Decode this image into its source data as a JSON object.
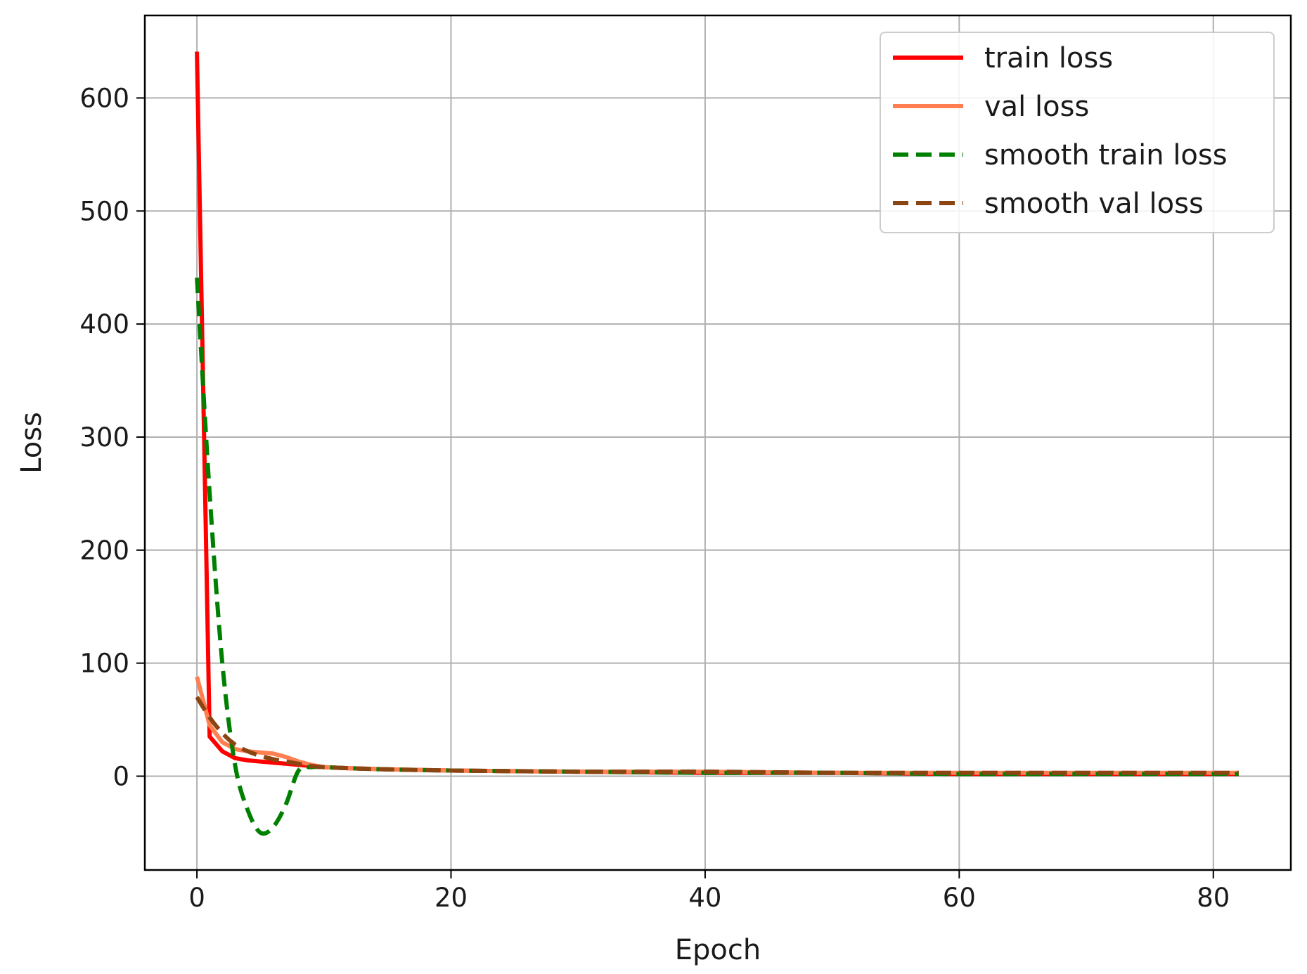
{
  "chart_data": {
    "type": "line",
    "title": "",
    "xlabel": "Epoch",
    "ylabel": "Loss",
    "xlim": [
      -4.1,
      86.1
    ],
    "ylim": [
      -83,
      673
    ],
    "xticks": [
      0,
      20,
      40,
      60,
      80
    ],
    "yticks": [
      0,
      100,
      200,
      300,
      400,
      500,
      600
    ],
    "grid": true,
    "legend_position": "top-right",
    "series": [
      {
        "name": "train loss",
        "color": "#ff0000",
        "style": "solid",
        "x": [
          0,
          1,
          2,
          3,
          4,
          5,
          6,
          7,
          8,
          9,
          10,
          12,
          15,
          20,
          30,
          40,
          50,
          60,
          70,
          82
        ],
        "y": [
          641,
          35,
          22,
          16,
          14,
          13,
          12,
          11,
          10,
          9,
          8,
          7,
          6,
          5,
          4,
          3,
          3,
          2,
          2,
          2
        ]
      },
      {
        "name": "val loss",
        "color": "#ff7f50",
        "style": "solid",
        "x": [
          0,
          1,
          2,
          3,
          4,
          5,
          6,
          7,
          8,
          9,
          10,
          12,
          15,
          20,
          30,
          40,
          50,
          60,
          70,
          82
        ],
        "y": [
          88,
          45,
          30,
          24,
          22,
          21,
          20,
          17,
          13,
          10,
          8,
          7,
          6,
          5,
          4,
          4,
          3,
          3,
          3,
          3
        ]
      },
      {
        "name": "smooth train loss",
        "color": "#008000",
        "style": "dashed",
        "x": [
          0,
          1,
          2,
          3,
          4,
          5,
          6,
          7,
          8,
          9,
          10,
          12,
          15,
          20,
          30,
          40,
          50,
          60,
          70,
          82
        ],
        "y": [
          441,
          250,
          100,
          10,
          -30,
          -50,
          -45,
          -25,
          5,
          8,
          8,
          7,
          6,
          5,
          4,
          3,
          3,
          2,
          2,
          2
        ]
      },
      {
        "name": "smooth val loss",
        "color": "#8b4513",
        "style": "dashed",
        "x": [
          0,
          1,
          2,
          3,
          4,
          5,
          6,
          7,
          8,
          9,
          10,
          12,
          15,
          20,
          30,
          40,
          50,
          60,
          70,
          82
        ],
        "y": [
          70,
          52,
          38,
          28,
          22,
          18,
          15,
          13,
          11,
          9,
          8,
          7,
          6,
          5,
          4,
          4,
          3,
          3,
          3,
          3
        ]
      }
    ]
  }
}
